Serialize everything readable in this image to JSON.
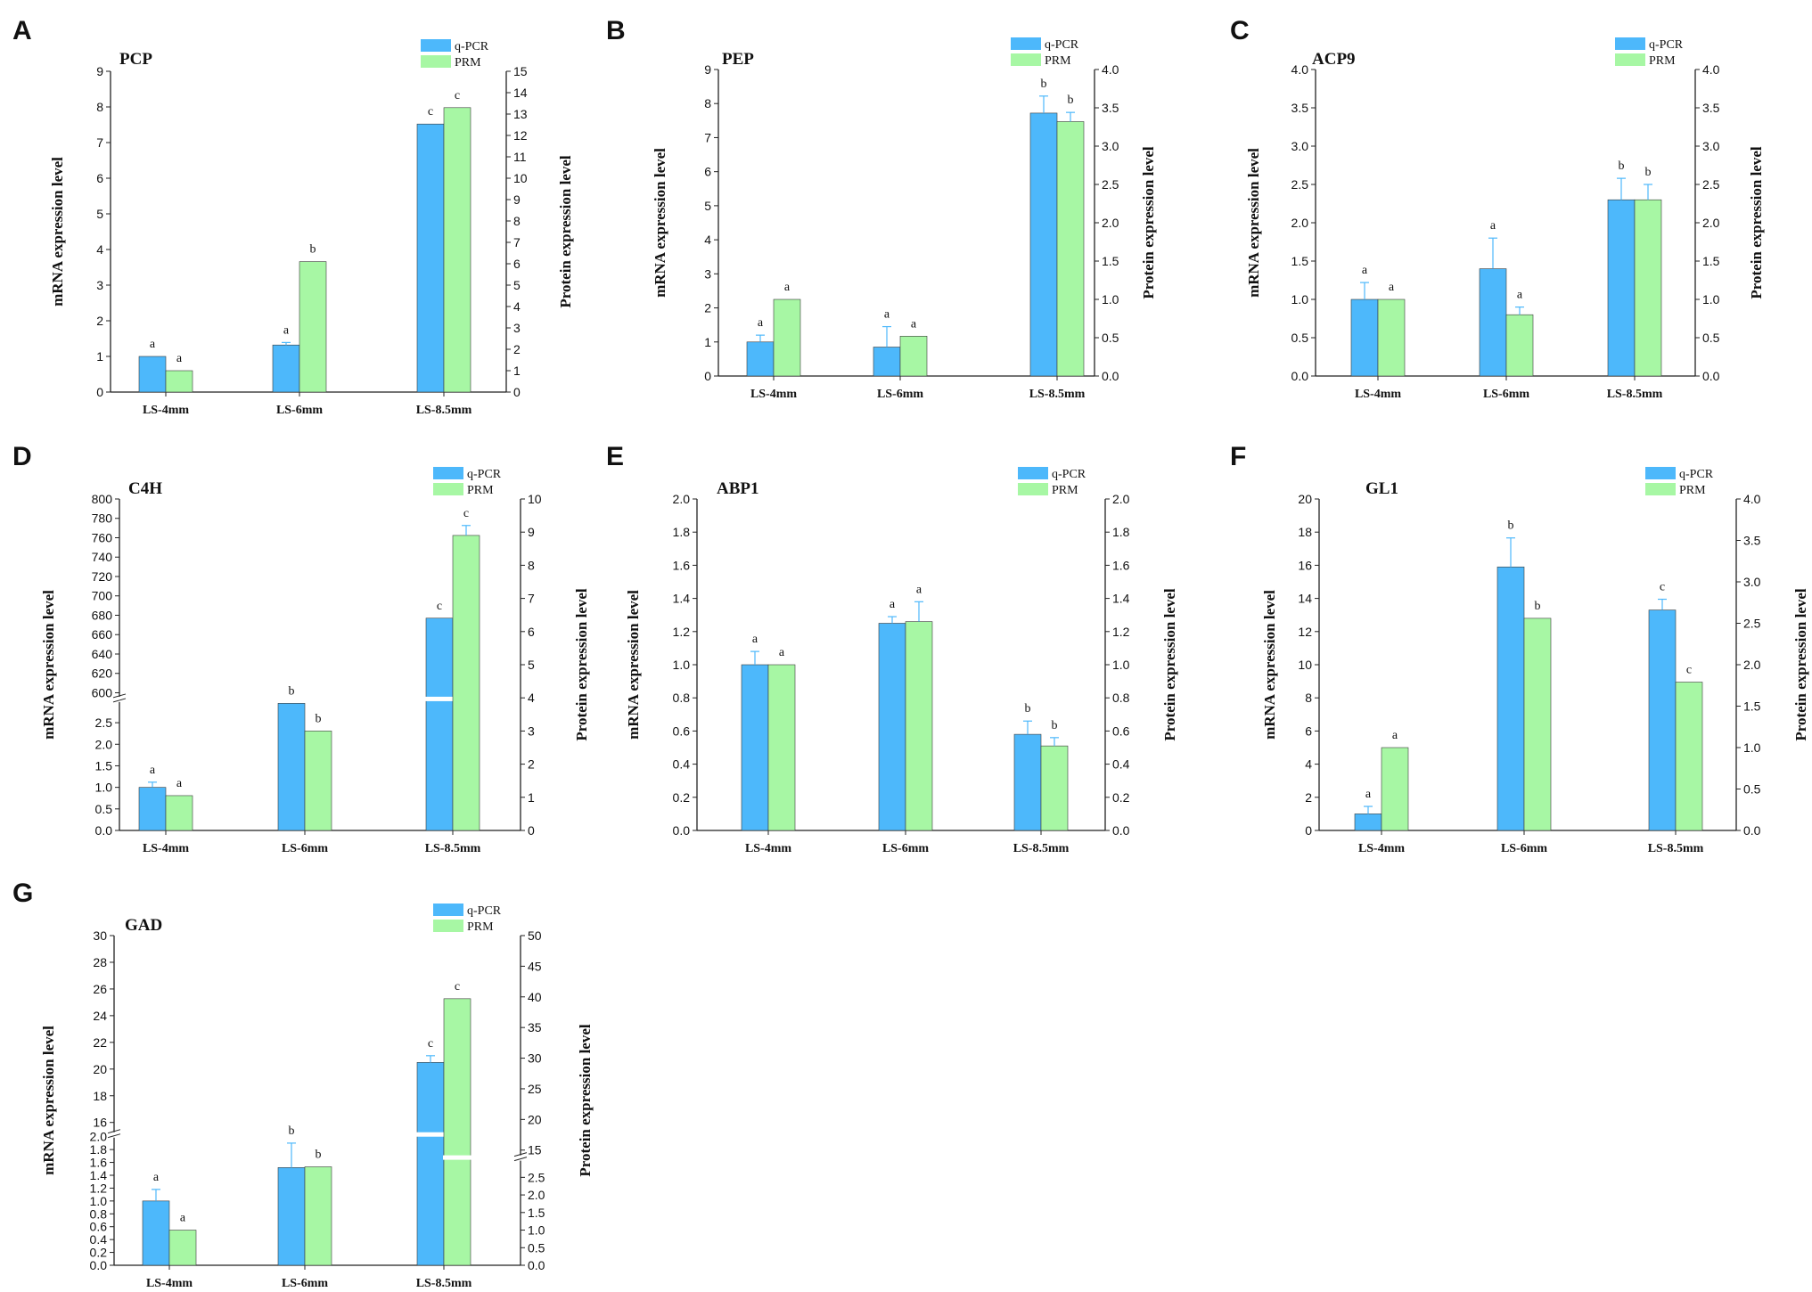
{
  "colors": {
    "qpcr": "#4db8fb",
    "prm": "#a7f7a4",
    "errorbar": "#4db8fb"
  },
  "legend": {
    "qpcr": "q-PCR",
    "prm": "PRM"
  },
  "axis_labels": {
    "left": "mRNA expression level",
    "right": "Protein expression level"
  },
  "chart_data": [
    {
      "panel": "A",
      "type": "bar",
      "title": "PCP",
      "categories": [
        "LS-4mm",
        "LS-6mm",
        "LS-8.5mm"
      ],
      "ylabel": "mRNA expression level",
      "y2label": "Protein expression level",
      "ylim": [
        0,
        9
      ],
      "yticks": [
        0,
        1,
        2,
        3,
        4,
        5,
        6,
        7,
        8,
        9
      ],
      "y2lim": [
        0,
        15
      ],
      "y2ticks": [
        0,
        1,
        2,
        3,
        4,
        5,
        6,
        7,
        8,
        9,
        10,
        11,
        12,
        13,
        14,
        15
      ],
      "series": [
        {
          "name": "q-PCR",
          "axis": "left",
          "values": [
            1.0,
            1.32,
            7.52
          ],
          "errors": [
            0,
            0.07,
            0
          ],
          "labels": [
            "a",
            "a",
            "c"
          ]
        },
        {
          "name": "PRM",
          "axis": "right",
          "values": [
            1.0,
            6.1,
            13.3
          ],
          "errors": [
            0,
            0,
            0
          ],
          "labels": [
            "a",
            "b",
            "c"
          ]
        }
      ]
    },
    {
      "panel": "B",
      "type": "bar",
      "title": "PEP",
      "categories": [
        "LS-4mm",
        "LS-6mm",
        "LS-8.5mm"
      ],
      "ylabel": "mRNA expression level",
      "y2label": "Protein expression level",
      "ylim": [
        0,
        9
      ],
      "yticks": [
        0,
        1,
        2,
        3,
        4,
        5,
        6,
        7,
        8,
        9
      ],
      "y2lim": [
        0,
        4
      ],
      "y2ticks": [
        "0.0",
        "0.5",
        "1.0",
        "1.5",
        "2.0",
        "2.5",
        "3.0",
        "3.5",
        "4.0"
      ],
      "series": [
        {
          "name": "q-PCR",
          "axis": "left",
          "values": [
            1.0,
            0.85,
            7.72
          ],
          "errors": [
            0.2,
            0.6,
            0.5
          ],
          "labels": [
            "a",
            "a",
            "b"
          ]
        },
        {
          "name": "PRM",
          "axis": "right",
          "values": [
            1.0,
            0.52,
            3.32
          ],
          "errors": [
            0,
            0,
            0.12
          ],
          "labels": [
            "a",
            "a",
            "b"
          ]
        }
      ]
    },
    {
      "panel": "C",
      "type": "bar",
      "title": "ACP9",
      "categories": [
        "LS-4mm",
        "LS-6mm",
        "LS-8.5mm"
      ],
      "ylabel": "mRNA expression level",
      "y2label": "Protein expression level",
      "ylim": [
        0,
        4
      ],
      "yticks": [
        "0.0",
        "0.5",
        "1.0",
        "1.5",
        "2.0",
        "2.5",
        "3.0",
        "3.5",
        "4.0"
      ],
      "y2lim": [
        0,
        4
      ],
      "y2ticks": [
        "0.0",
        "0.5",
        "1.0",
        "1.5",
        "2.0",
        "2.5",
        "3.0",
        "3.5",
        "4.0"
      ],
      "series": [
        {
          "name": "q-PCR",
          "axis": "left",
          "values": [
            1.0,
            1.4,
            2.3
          ],
          "errors": [
            0.22,
            0.4,
            0.28
          ],
          "labels": [
            "a",
            "a",
            "b"
          ]
        },
        {
          "name": "PRM",
          "axis": "right",
          "values": [
            1.0,
            0.8,
            2.3
          ],
          "errors": [
            0,
            0.1,
            0.2
          ],
          "labels": [
            "a",
            "a",
            "b"
          ]
        }
      ]
    },
    {
      "panel": "D",
      "type": "bar",
      "title": "C4H",
      "categories": [
        "LS-4mm",
        "LS-6mm",
        "LS-8.5mm"
      ],
      "ylabel": "mRNA expression level",
      "y2label": "Protein expression level",
      "axis_break": {
        "lower": [
          0,
          3.0
        ],
        "upper": [
          595,
          800
        ]
      },
      "yticks_lower": [
        "0.0",
        "0.5",
        "1.0",
        "1.5",
        "2.0",
        "2.5"
      ],
      "yticks_upper": [
        "600",
        "620",
        "640",
        "660",
        "680",
        "700",
        "720",
        "740",
        "760",
        "780",
        "800"
      ],
      "y2lim": [
        0,
        10
      ],
      "y2ticks": [
        0,
        1,
        2,
        3,
        4,
        5,
        6,
        7,
        8,
        9,
        10
      ],
      "series": [
        {
          "name": "q-PCR",
          "axis": "left",
          "values": [
            1.0,
            2.95,
            677
          ],
          "errors": [
            0.12,
            0,
            0
          ],
          "labels": [
            "a",
            "b",
            "c"
          ]
        },
        {
          "name": "PRM",
          "axis": "right",
          "values": [
            1.05,
            3.0,
            8.9
          ],
          "errors": [
            0,
            0,
            0.3
          ],
          "labels": [
            "a",
            "b",
            "c"
          ]
        }
      ]
    },
    {
      "panel": "E",
      "type": "bar",
      "title": "ABP1",
      "categories": [
        "LS-4mm",
        "LS-6mm",
        "LS-8.5mm"
      ],
      "ylabel": "mRNA expression level",
      "y2label": "Protein expression level",
      "ylim": [
        0,
        2
      ],
      "yticks": [
        "0.0",
        "0.2",
        "0.4",
        "0.6",
        "0.8",
        "1.0",
        "1.2",
        "1.4",
        "1.6",
        "1.8",
        "2.0"
      ],
      "y2lim": [
        0,
        2
      ],
      "y2ticks": [
        "0.0",
        "0.2",
        "0.4",
        "0.6",
        "0.8",
        "1.0",
        "1.2",
        "1.4",
        "1.6",
        "1.8",
        "2.0"
      ],
      "series": [
        {
          "name": "q-PCR",
          "axis": "left",
          "values": [
            1.0,
            1.25,
            0.58
          ],
          "errors": [
            0.08,
            0.04,
            0.08
          ],
          "labels": [
            "a",
            "a",
            "b"
          ]
        },
        {
          "name": "PRM",
          "axis": "right",
          "values": [
            1.0,
            1.26,
            0.51
          ],
          "errors": [
            0,
            0.12,
            0.05
          ],
          "labels": [
            "a",
            "a",
            "b"
          ]
        }
      ]
    },
    {
      "panel": "F",
      "type": "bar",
      "title": "GL1",
      "categories": [
        "LS-4mm",
        "LS-6mm",
        "LS-8.5mm"
      ],
      "ylabel": "mRNA expression level",
      "y2label": "Protein expression level",
      "ylim": [
        0,
        20
      ],
      "yticks": [
        0,
        2,
        4,
        6,
        8,
        10,
        12,
        14,
        16,
        18,
        20
      ],
      "y2lim": [
        0,
        4
      ],
      "y2ticks": [
        "0.0",
        "0.5",
        "1.0",
        "1.5",
        "2.0",
        "2.5",
        "3.0",
        "3.5",
        "4.0"
      ],
      "series": [
        {
          "name": "q-PCR",
          "axis": "left",
          "values": [
            1.0,
            15.9,
            13.3
          ],
          "errors": [
            0.45,
            1.75,
            0.65
          ],
          "labels": [
            "a",
            "b",
            "c"
          ]
        },
        {
          "name": "PRM",
          "axis": "right",
          "values": [
            1.0,
            2.56,
            1.79
          ],
          "errors": [
            0,
            0,
            0
          ],
          "labels": [
            "a",
            "b",
            "c"
          ]
        }
      ]
    },
    {
      "panel": "G",
      "type": "bar",
      "title": "GAD",
      "categories": [
        "LS-4mm",
        "LS-6mm",
        "LS-8.5mm"
      ],
      "ylabel": "mRNA expression level",
      "y2label": "Protein expression level",
      "axis_break": {
        "lower": [
          0,
          2.0
        ],
        "upper": [
          15.2,
          30
        ]
      },
      "yticks_lower": [
        "0.0",
        "0.2",
        "0.4",
        "0.6",
        "0.8",
        "1.0",
        "1.2",
        "1.4",
        "1.6",
        "1.8",
        "2.0"
      ],
      "yticks_upper": [
        "16",
        "18",
        "20",
        "22",
        "24",
        "26",
        "28",
        "30"
      ],
      "axis2_break": {
        "lower": [
          0,
          3.0
        ],
        "upper": [
          14,
          50
        ]
      },
      "y2ticks_lower": [
        "0.0",
        "0.5",
        "1.0",
        "1.5",
        "2.0",
        "2.5"
      ],
      "y2ticks_upper": [
        "15",
        "20",
        "25",
        "30",
        "35",
        "40",
        "45",
        "50"
      ],
      "series": [
        {
          "name": "q-PCR",
          "axis": "left",
          "values": [
            1.0,
            1.52,
            20.5
          ],
          "errors": [
            0.18,
            0.38,
            0.5
          ],
          "labels": [
            "a",
            "b",
            "c"
          ]
        },
        {
          "name": "PRM",
          "axis": "right",
          "values": [
            1.0,
            2.8,
            39.7
          ],
          "errors": [
            0,
            0,
            0
          ],
          "labels": [
            "a",
            "b",
            "c"
          ]
        }
      ]
    }
  ]
}
